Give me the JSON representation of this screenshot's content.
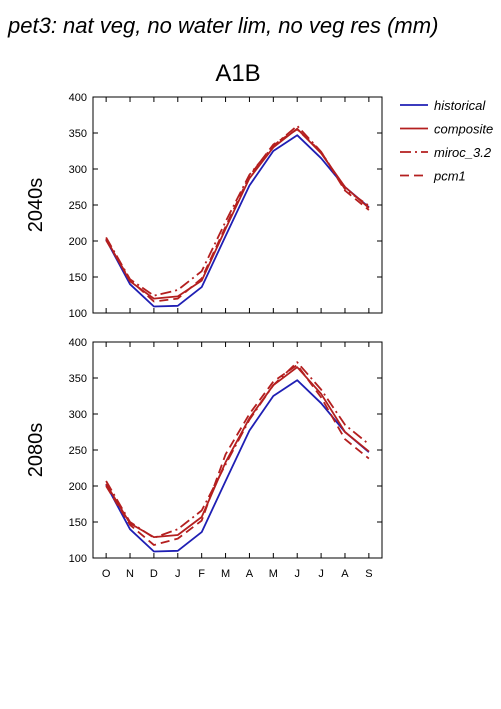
{
  "figure": {
    "title": "pet3: nat veg, no water lim, no veg res (mm)",
    "scenario": "A1B"
  },
  "legend": {
    "placement": "right",
    "items": [
      {
        "label": "historical",
        "color": "#1f1fb4",
        "dash": "solid"
      },
      {
        "label": "composite",
        "color": "#b41f1f",
        "dash": "solid"
      },
      {
        "label": "miroc_3.2",
        "color": "#b41f1f",
        "dash": "dashdot"
      },
      {
        "label": "pcm1",
        "color": "#b41f1f",
        "dash": "dashed"
      }
    ]
  },
  "chart_data": [
    {
      "type": "line",
      "ylabel": "2040s",
      "xlabel": "",
      "categories": [
        "O",
        "N",
        "D",
        "J",
        "F",
        "M",
        "A",
        "M",
        "J",
        "J",
        "A",
        "S"
      ],
      "ylim": [
        100,
        400
      ],
      "yticks": [
        100,
        150,
        200,
        250,
        300,
        350,
        400
      ],
      "grid": false,
      "series": [
        {
          "name": "historical",
          "values": [
            202,
            140,
            109,
            110,
            136,
            207,
            277,
            325,
            347,
            315,
            275,
            247
          ]
        },
        {
          "name": "composite",
          "values": [
            203,
            144,
            120,
            123,
            145,
            217,
            287,
            330,
            356,
            322,
            275,
            246
          ]
        },
        {
          "name": "miroc_3.2",
          "values": [
            205,
            147,
            124,
            132,
            158,
            227,
            292,
            332,
            360,
            324,
            272,
            249
          ]
        },
        {
          "name": "pcm1",
          "values": [
            201,
            146,
            116,
            120,
            148,
            220,
            290,
            334,
            355,
            324,
            270,
            243
          ]
        }
      ]
    },
    {
      "type": "line",
      "ylabel": "2080s",
      "xlabel": "",
      "categories": [
        "O",
        "N",
        "D",
        "J",
        "F",
        "M",
        "A",
        "M",
        "J",
        "J",
        "A",
        "S"
      ],
      "ylim": [
        100,
        400
      ],
      "yticks": [
        100,
        150,
        200,
        250,
        300,
        350,
        400
      ],
      "grid": false,
      "series": [
        {
          "name": "historical",
          "values": [
            202,
            140,
            109,
            110,
            136,
            207,
            277,
            325,
            347,
            315,
            275,
            247
          ]
        },
        {
          "name": "composite",
          "values": [
            203,
            148,
            129,
            132,
            157,
            233,
            294,
            340,
            365,
            328,
            275,
            248
          ]
        },
        {
          "name": "miroc_3.2",
          "values": [
            207,
            150,
            128,
            140,
            166,
            230,
            292,
            340,
            372,
            334,
            285,
            258
          ]
        },
        {
          "name": "pcm1",
          "values": [
            200,
            146,
            118,
            127,
            152,
            244,
            300,
            345,
            368,
            323,
            265,
            238
          ]
        }
      ]
    }
  ]
}
